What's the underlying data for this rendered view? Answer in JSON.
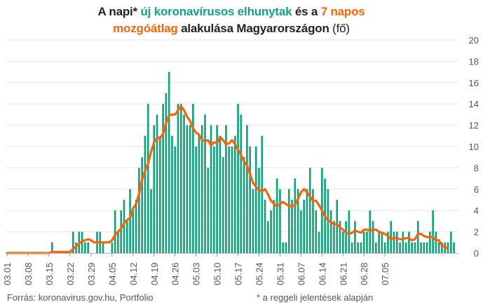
{
  "title": {
    "p1": "A napi* ",
    "p2": "új koronavírusos elhunytak",
    "p3": " és a ",
    "p4": "7 napos",
    "p5": "mozgóátlag",
    "p6": " alakulása Magyarországon",
    "p7": " (fő)"
  },
  "footer": {
    "source": "Forrás: koronavirus.gov.hu, Portfolio",
    "note": "* a reggeli jelentések alapján"
  },
  "colors": {
    "bars": "#14a07a",
    "line": "#f2650d",
    "grid": "#e6e6e6",
    "text": "#555555"
  },
  "chart_data": {
    "type": "bar",
    "x_tick_labels": [
      "03.01",
      "03.08",
      "03.15",
      "03.22",
      "03.29",
      "04.05",
      "04.12",
      "04.19",
      "04.26",
      "05.03",
      "05.10",
      "05.17",
      "05.24",
      "05.31",
      "06.07",
      "06.14",
      "06.21",
      "06.28",
      "07.05"
    ],
    "ylim": [
      0,
      20
    ],
    "yticks": [
      0,
      2,
      4,
      6,
      8,
      10,
      12,
      14,
      16,
      18,
      20
    ],
    "y_axis_side": "right",
    "grid": true,
    "series": [
      {
        "type": "bar",
        "values": [
          0,
          0,
          0,
          0,
          0,
          0,
          0,
          0,
          0,
          0,
          0,
          0,
          0,
          0,
          0,
          1,
          0,
          0,
          0,
          0,
          0,
          0,
          2,
          1,
          2,
          2,
          1,
          1,
          0,
          0,
          2,
          2,
          1,
          0,
          0,
          1,
          4,
          2,
          4,
          5,
          3,
          6,
          4,
          5,
          8,
          9,
          11,
          14,
          6,
          12,
          13,
          11,
          14,
          15,
          17,
          11,
          10,
          14,
          14,
          13,
          12,
          12,
          14,
          10,
          11,
          12,
          13,
          8,
          12,
          10,
          12,
          11,
          9,
          12,
          10,
          10,
          11,
          14,
          13,
          9,
          12,
          10,
          6,
          10,
          8,
          11,
          5,
          3,
          4,
          5,
          7,
          6,
          1,
          1,
          6,
          5,
          7,
          6,
          4,
          5,
          6,
          8,
          6,
          4,
          2,
          8,
          7,
          6,
          4,
          3,
          5,
          3,
          2,
          3,
          4,
          1,
          3,
          1,
          1,
          2,
          2,
          4,
          3,
          1,
          2,
          2,
          1,
          2,
          3,
          2,
          2,
          1,
          2,
          1,
          2,
          1,
          1,
          3,
          1,
          1,
          1,
          2,
          4,
          2,
          1,
          1,
          1,
          1,
          2,
          1,
          0
        ]
      },
      {
        "type": "line",
        "values": [
          0,
          0,
          0,
          0,
          0,
          0,
          0,
          0,
          0,
          0,
          0,
          0,
          0,
          0,
          0,
          0.1,
          0.1,
          0.1,
          0.1,
          0.1,
          0.1,
          0.1,
          0.4,
          0.6,
          0.9,
          1.1,
          1.2,
          1.3,
          1.2,
          1,
          1,
          1,
          1,
          1,
          1,
          1.2,
          1.7,
          2,
          2.3,
          2.8,
          3.1,
          3.3,
          4.2,
          4.6,
          5.6,
          6.9,
          7.7,
          8.4,
          9.5,
          10.4,
          10.8,
          10.8,
          11.2,
          12.2,
          12.9,
          13,
          13,
          13.4,
          13.8,
          13.4,
          12.8,
          12.4,
          11.7,
          11.3,
          11.1,
          10.6,
          10.5,
          10.6,
          10.1,
          10.4,
          10.3,
          10.9,
          10.6,
          10.2,
          10.3,
          10.6,
          10.2,
          9.7,
          9.2,
          8.6,
          8.2,
          7.4,
          6.6,
          6.2,
          5.9,
          5.8,
          6,
          5.5,
          4.9,
          4.6,
          4.4,
          4.6,
          4.8,
          4.6,
          4.4,
          4.4,
          4.5,
          5.1,
          5.7,
          6,
          5.7,
          5.3,
          4.9,
          4.9,
          4.5,
          4,
          3.4,
          3.1,
          2.9,
          2.7,
          2.7,
          2.4,
          2.2,
          1.9,
          1.8,
          1.9,
          2.1,
          2,
          1.9,
          2.2,
          2.2,
          2.1,
          2.2,
          2.2,
          2,
          1.9,
          1.8,
          1.6,
          1.3,
          1.4,
          1.4,
          1.3,
          1.3,
          1.4,
          1.4,
          1.2,
          1.3,
          1.8,
          1.8,
          1.6,
          1.5,
          1.5,
          1.5,
          1.2,
          1.2,
          0.7,
          0.6,
          0.4
        ]
      }
    ]
  }
}
